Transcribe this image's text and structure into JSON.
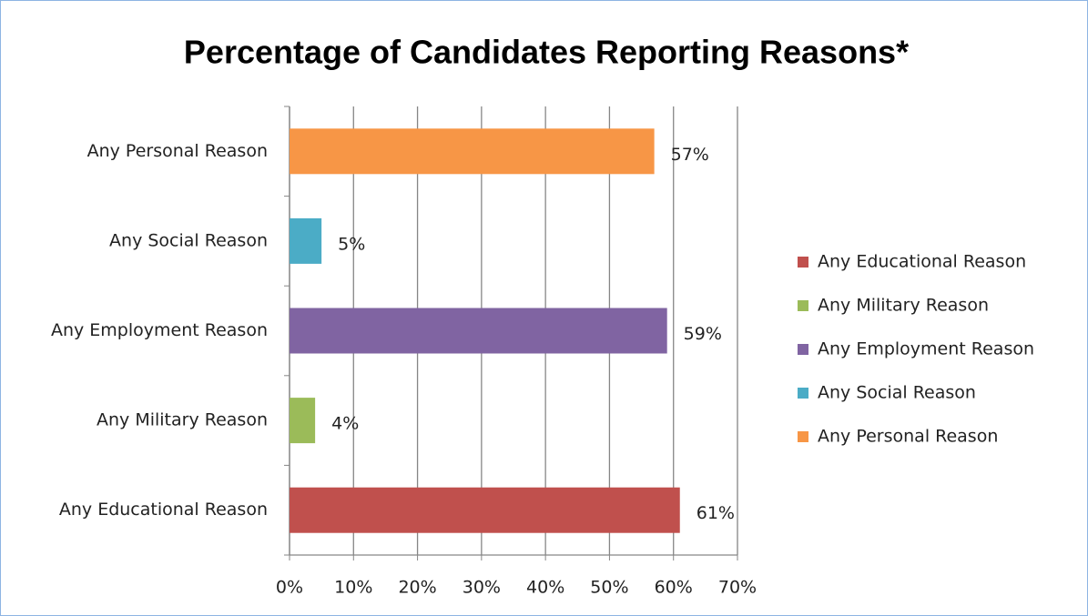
{
  "chart_data": {
    "type": "hbar",
    "title": "Percentage of Candidates Reporting Reasons*",
    "categories": [
      "Any Educational Reason",
      "Any Military Reason",
      "Any Employment Reason",
      "Any Social Reason",
      "Any Personal Reason"
    ],
    "values": [
      61,
      4,
      59,
      5,
      57
    ],
    "value_labels": [
      "61%",
      "4%",
      "59%",
      "5%",
      "57%"
    ],
    "colors": [
      "#c0504d",
      "#9bbb59",
      "#8064a2",
      "#4bacc6",
      "#f79646"
    ],
    "xlim": [
      0,
      70
    ],
    "xticks": [
      {
        "value": 0,
        "label": "0%"
      },
      {
        "value": 10,
        "label": "10%"
      },
      {
        "value": 20,
        "label": "20%"
      },
      {
        "value": 30,
        "label": "30%"
      },
      {
        "value": 40,
        "label": "40%"
      },
      {
        "value": 50,
        "label": "50%"
      },
      {
        "value": 60,
        "label": "60%"
      },
      {
        "value": 70,
        "label": "70%"
      }
    ],
    "grid": true,
    "legend": "right"
  }
}
